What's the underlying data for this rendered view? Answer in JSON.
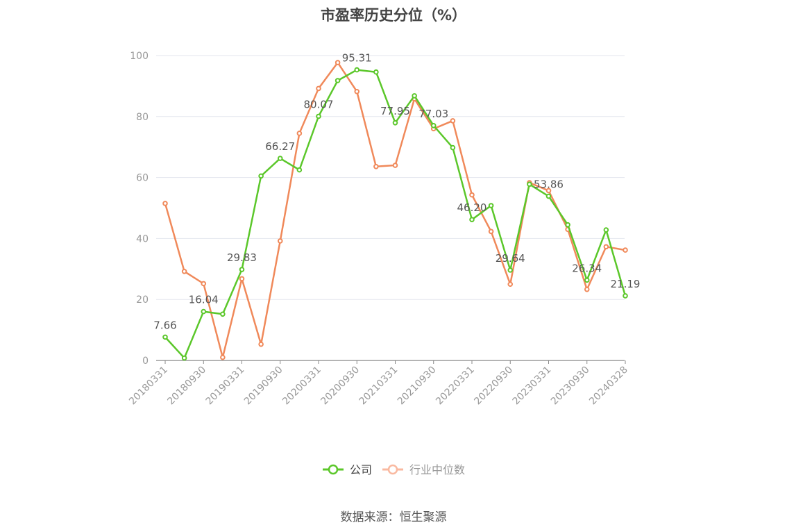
{
  "title": "市盈率历史分位（%）",
  "source": "数据来源：恒生聚源",
  "legend": [
    {
      "label": "公司",
      "color": "#5bc72a"
    },
    {
      "label": "行业中位数",
      "color": "#f0895a"
    }
  ],
  "chart_data": {
    "type": "line",
    "title": "市盈率历史分位（%）",
    "ylim": [
      0,
      100
    ],
    "y_ticks": [
      0,
      20,
      40,
      60,
      80,
      100
    ],
    "grid": true,
    "legend_position": "bottom",
    "x_tick_labels": [
      "20180331",
      "20180930",
      "20190331",
      "20190930",
      "20200331",
      "20200930",
      "20210331",
      "20210930",
      "20220331",
      "20220930",
      "20230331",
      "20230930",
      "20240328"
    ],
    "x": [
      "20180331",
      "20180630",
      "20180930",
      "20181231",
      "20190331",
      "20190630",
      "20190930",
      "20191231",
      "20200331",
      "20200630",
      "20200930",
      "20201231",
      "20210331",
      "20210630",
      "20210930",
      "20211231",
      "20220331",
      "20220630",
      "20220930",
      "20221231",
      "20230331",
      "20230630",
      "20230930",
      "20231231",
      "20240328"
    ],
    "series": [
      {
        "name": "公司",
        "color": "#5bc72a",
        "values": [
          7.66,
          0.8,
          16.04,
          15.2,
          29.83,
          60.5,
          66.27,
          62.5,
          80.07,
          91.8,
          95.31,
          94.6,
          77.95,
          86.8,
          77.03,
          69.8,
          46.2,
          50.8,
          29.64,
          57.8,
          53.86,
          44.5,
          26.34,
          42.8,
          21.19
        ],
        "labels": {
          "0": "7.66",
          "2": "16.04",
          "4": "29.83",
          "6": "66.27",
          "8": "80.07",
          "10": "95.31",
          "12": "77.95",
          "14": "77.03",
          "16": "46.20",
          "18": "29.64",
          "20": "53.86",
          "22": "26.34",
          "24": "21.19"
        }
      },
      {
        "name": "行业中位数",
        "color": "#f0895a",
        "values": [
          51.5,
          29.2,
          25.2,
          1.0,
          26.8,
          5.3,
          39.2,
          74.5,
          89.2,
          97.7,
          88.2,
          63.6,
          64.0,
          85.8,
          76.0,
          78.6,
          54.3,
          42.3,
          25.0,
          58.3,
          55.7,
          43.0,
          23.3,
          37.3,
          36.2
        ]
      }
    ]
  }
}
